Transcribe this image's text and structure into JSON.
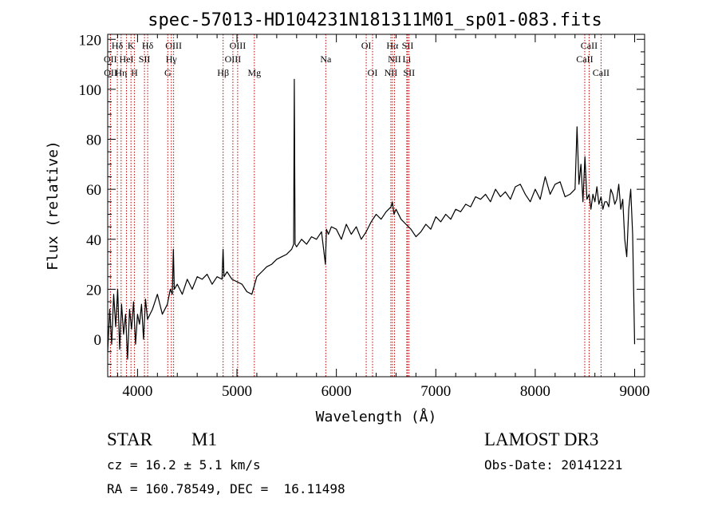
{
  "chart_data": {
    "type": "line",
    "title": "spec-57013-HD104231N181311M01_sp01-083.fits",
    "xlabel": "Wavelength (Å)",
    "ylabel": "Flux (relative)",
    "xlim": [
      3700,
      9100
    ],
    "ylim": [
      -15,
      122
    ],
    "xticks": [
      4000,
      5000,
      6000,
      7000,
      8000,
      9000
    ],
    "yticks": [
      0,
      20,
      40,
      60,
      80,
      100,
      120
    ],
    "grid": false,
    "series": [
      {
        "color": "#000000",
        "x": [
          3700,
          3720,
          3740,
          3760,
          3780,
          3800,
          3820,
          3840,
          3860,
          3880,
          3900,
          3920,
          3940,
          3960,
          3980,
          4000,
          4020,
          4040,
          4060,
          4080,
          4100,
          4150,
          4200,
          4250,
          4300,
          4330,
          4350,
          4360,
          4370,
          4400,
          4450,
          4500,
          4550,
          4600,
          4650,
          4700,
          4750,
          4800,
          4850,
          4860,
          4870,
          4900,
          4950,
          5000,
          5050,
          5100,
          5150,
          5200,
          5250,
          5300,
          5350,
          5400,
          5450,
          5500,
          5550,
          5570,
          5577,
          5585,
          5600,
          5650,
          5700,
          5750,
          5800,
          5850,
          5890,
          5900,
          5920,
          5950,
          6000,
          6050,
          6100,
          6150,
          6200,
          6250,
          6300,
          6350,
          6400,
          6450,
          6500,
          6550,
          6563,
          6580,
          6600,
          6650,
          6700,
          6750,
          6800,
          6850,
          6900,
          6950,
          7000,
          7050,
          7100,
          7150,
          7200,
          7250,
          7300,
          7350,
          7400,
          7450,
          7500,
          7550,
          7600,
          7650,
          7700,
          7750,
          7800,
          7850,
          7900,
          7950,
          8000,
          8050,
          8100,
          8150,
          8200,
          8250,
          8300,
          8350,
          8400,
          8420,
          8440,
          8460,
          8480,
          8500,
          8520,
          8542,
          8560,
          8580,
          8600,
          8620,
          8640,
          8662,
          8680,
          8700,
          8720,
          8740,
          8760,
          8780,
          8800,
          8820,
          8840,
          8860,
          8880,
          8900,
          8920,
          8940,
          8960,
          8980,
          9000
        ],
        "y": [
          -5,
          12,
          -2,
          18,
          5,
          20,
          -4,
          14,
          2,
          10,
          -8,
          12,
          4,
          15,
          -2,
          10,
          6,
          14,
          0,
          16,
          8,
          12,
          18,
          10,
          14,
          20,
          18,
          36,
          20,
          22,
          18,
          24,
          20,
          25,
          24,
          26,
          22,
          25,
          24,
          36,
          25,
          27,
          24,
          23,
          22,
          19,
          18,
          25,
          27,
          29,
          30,
          32,
          33,
          34,
          36,
          38,
          104,
          38,
          37,
          40,
          38,
          41,
          40,
          43,
          30,
          44,
          42,
          45,
          44,
          40,
          46,
          42,
          45,
          40,
          43,
          47,
          50,
          48,
          51,
          53,
          55,
          50,
          52,
          48,
          46,
          44,
          41,
          43,
          46,
          44,
          49,
          47,
          50,
          48,
          52,
          51,
          54,
          53,
          57,
          56,
          58,
          55,
          60,
          57,
          59,
          56,
          61,
          62,
          58,
          55,
          60,
          56,
          65,
          58,
          62,
          63,
          57,
          58,
          60,
          85,
          62,
          70,
          55,
          73,
          56,
          58,
          52,
          58,
          55,
          61,
          54,
          57,
          52,
          55,
          55,
          53,
          60,
          58,
          54,
          56,
          62,
          52,
          56,
          40,
          33,
          52,
          60,
          42,
          -2
        ],
        "linewidth": 1.2
      }
    ],
    "emission_lines": [
      {
        "label": "Hδ",
        "x": 3797,
        "row": 1
      },
      {
        "label": "OII",
        "x": 3727,
        "row": 2
      },
      {
        "label": "OII",
        "x": 3729,
        "row": 3
      },
      {
        "label": "K",
        "x": 3934,
        "row": 1
      },
      {
        "label": "HeI",
        "x": 3889,
        "row": 2
      },
      {
        "label": "Hη",
        "x": 3835,
        "row": 3
      },
      {
        "label": "SII",
        "x": 4070,
        "row": 2
      },
      {
        "label": "H",
        "x": 3968,
        "row": 3
      },
      {
        "label": "Hδ",
        "x": 4102,
        "row": 1
      },
      {
        "label": "OIII",
        "x": 4363,
        "row": 1
      },
      {
        "label": "Hγ",
        "x": 4340,
        "row": 2
      },
      {
        "label": "G",
        "x": 4304,
        "row": 3
      },
      {
        "label": "OIII",
        "x": 5007,
        "row": 1
      },
      {
        "label": "OIII",
        "x": 4959,
        "row": 2
      },
      {
        "label": "Hβ",
        "x": 4861,
        "row": 3
      },
      {
        "label": "Mg",
        "x": 5175,
        "row": 3
      },
      {
        "label": "Na",
        "x": 5893,
        "row": 2
      },
      {
        "label": "OI",
        "x": 6300,
        "row": 1
      },
      {
        "label": "OI",
        "x": 6364,
        "row": 3
      },
      {
        "label": "Hα",
        "x": 6563,
        "row": 1
      },
      {
        "label": "SII",
        "x": 6717,
        "row": 1
      },
      {
        "label": "NII",
        "x": 6584,
        "row": 2
      },
      {
        "label": "Li",
        "x": 6708,
        "row": 2
      },
      {
        "label": "NII",
        "x": 6548,
        "row": 3
      },
      {
        "label": "SII",
        "x": 6731,
        "row": 3
      },
      {
        "label": "CaII",
        "x": 8542,
        "row": 1
      },
      {
        "label": "CaII",
        "x": 8498,
        "row": 2
      },
      {
        "label": "CaII",
        "x": 8662,
        "row": 3
      }
    ],
    "line_marker_color": "#c00000"
  },
  "info": {
    "class": "STAR",
    "subclass": "M1",
    "survey": "LAMOST DR3",
    "cz": "cz = 16.2 ± 5.1 km/s",
    "obs_date": "Obs-Date: 20141221",
    "radec": "RA = 160.78549, DEC =  16.11498"
  }
}
